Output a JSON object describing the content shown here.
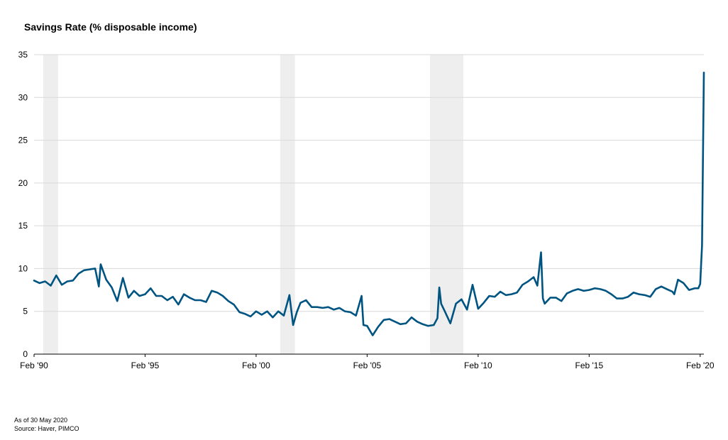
{
  "chart_data": {
    "type": "line",
    "title": "Savings Rate (% disposable income)",
    "xlabel": "",
    "ylabel": "",
    "ylim": [
      0,
      35
    ],
    "yticks": [
      0,
      5,
      10,
      15,
      20,
      25,
      30,
      35
    ],
    "xlim": [
      "1990-02",
      "2020-04"
    ],
    "xtick_labels": [
      "Feb '90",
      "Feb '95",
      "Feb '00",
      "Feb '05",
      "Feb '10",
      "Feb '15",
      "Feb '20"
    ],
    "xtick_dates": [
      "1990-02",
      "1995-02",
      "2000-02",
      "2005-02",
      "2010-02",
      "2015-02",
      "2020-02"
    ],
    "grid": true,
    "line_color": "#005481",
    "recession_color": "#eeeeee",
    "recessions": [
      {
        "start": "1990-07",
        "end": "1991-03"
      },
      {
        "start": "2001-03",
        "end": "2001-11"
      },
      {
        "start": "2007-12",
        "end": "2009-06"
      }
    ],
    "series": [
      {
        "x": [
          "1990-02",
          "1990-05",
          "1990-08",
          "1990-11",
          "1991-02",
          "1991-05",
          "1991-08",
          "1991-11",
          "1992-02",
          "1992-05",
          "1992-08",
          "1992-11",
          "1993-01",
          "1993-02",
          "1993-05",
          "1993-08",
          "1993-11",
          "1994-02",
          "1994-05",
          "1994-08",
          "1994-11",
          "1995-02",
          "1995-05",
          "1995-08",
          "1995-11",
          "1996-02",
          "1996-05",
          "1996-08",
          "1996-11",
          "1997-02",
          "1997-05",
          "1997-08",
          "1997-11",
          "1998-02",
          "1998-05",
          "1998-08",
          "1998-11",
          "1999-02",
          "1999-05",
          "1999-08",
          "1999-11",
          "2000-02",
          "2000-05",
          "2000-08",
          "2000-11",
          "2001-02",
          "2001-05",
          "2001-08",
          "2001-10",
          "2001-12",
          "2002-02",
          "2002-05",
          "2002-08",
          "2002-11",
          "2003-02",
          "2003-05",
          "2003-08",
          "2003-11",
          "2004-02",
          "2004-05",
          "2004-08",
          "2004-11",
          "2004-12",
          "2005-02",
          "2005-05",
          "2005-08",
          "2005-11",
          "2006-02",
          "2006-05",
          "2006-08",
          "2006-11",
          "2007-02",
          "2007-05",
          "2007-08",
          "2007-11",
          "2008-02",
          "2008-04",
          "2008-05",
          "2008-06",
          "2008-08",
          "2008-11",
          "2009-02",
          "2009-05",
          "2009-08",
          "2009-11",
          "2010-02",
          "2010-05",
          "2010-08",
          "2010-11",
          "2011-02",
          "2011-05",
          "2011-08",
          "2011-11",
          "2012-02",
          "2012-05",
          "2012-08",
          "2012-10",
          "2012-12",
          "2013-01",
          "2013-02",
          "2013-05",
          "2013-08",
          "2013-11",
          "2014-02",
          "2014-05",
          "2014-08",
          "2014-11",
          "2015-02",
          "2015-05",
          "2015-08",
          "2015-11",
          "2016-02",
          "2016-05",
          "2016-08",
          "2016-11",
          "2017-02",
          "2017-05",
          "2017-08",
          "2017-11",
          "2018-02",
          "2018-05",
          "2018-08",
          "2018-11",
          "2018-12",
          "2019-02",
          "2019-05",
          "2019-08",
          "2019-11",
          "2020-01",
          "2020-02",
          "2020-03",
          "2020-04"
        ],
        "values": [
          8.6,
          8.3,
          8.5,
          8.0,
          9.2,
          8.1,
          8.5,
          8.6,
          9.4,
          9.8,
          9.9,
          10.0,
          7.9,
          10.5,
          8.7,
          7.8,
          6.2,
          8.9,
          6.6,
          7.4,
          6.8,
          7.0,
          7.7,
          6.8,
          6.8,
          6.3,
          6.7,
          5.8,
          7.0,
          6.6,
          6.3,
          6.3,
          6.1,
          7.4,
          7.2,
          6.8,
          6.2,
          5.8,
          4.9,
          4.7,
          4.4,
          5.0,
          4.6,
          5.0,
          4.3,
          5.0,
          4.5,
          6.9,
          3.4,
          4.9,
          6.0,
          6.3,
          5.5,
          5.5,
          5.4,
          5.5,
          5.2,
          5.4,
          5.0,
          4.9,
          4.5,
          6.8,
          3.4,
          3.3,
          2.2,
          3.2,
          4.0,
          4.1,
          3.8,
          3.5,
          3.6,
          4.3,
          3.8,
          3.5,
          3.3,
          3.4,
          4.2,
          7.8,
          5.9,
          5.0,
          3.6,
          5.9,
          6.4,
          5.2,
          8.1,
          5.3,
          6.0,
          6.8,
          6.7,
          7.3,
          6.9,
          7.0,
          7.2,
          8.1,
          8.5,
          9.0,
          8.0,
          11.9,
          6.5,
          5.9,
          6.6,
          6.6,
          6.2,
          7.1,
          7.4,
          7.6,
          7.4,
          7.5,
          7.7,
          7.6,
          7.4,
          7.0,
          6.5,
          6.5,
          6.7,
          7.2,
          7.0,
          6.9,
          6.7,
          7.6,
          7.9,
          7.6,
          7.3,
          7.0,
          8.7,
          8.3,
          7.5,
          7.7,
          7.7,
          8.2,
          12.7,
          32.9
        ]
      }
    ]
  },
  "footnotes": {
    "date": "As of 30 May 2020",
    "source": "Source: Haver, PIMCO"
  }
}
